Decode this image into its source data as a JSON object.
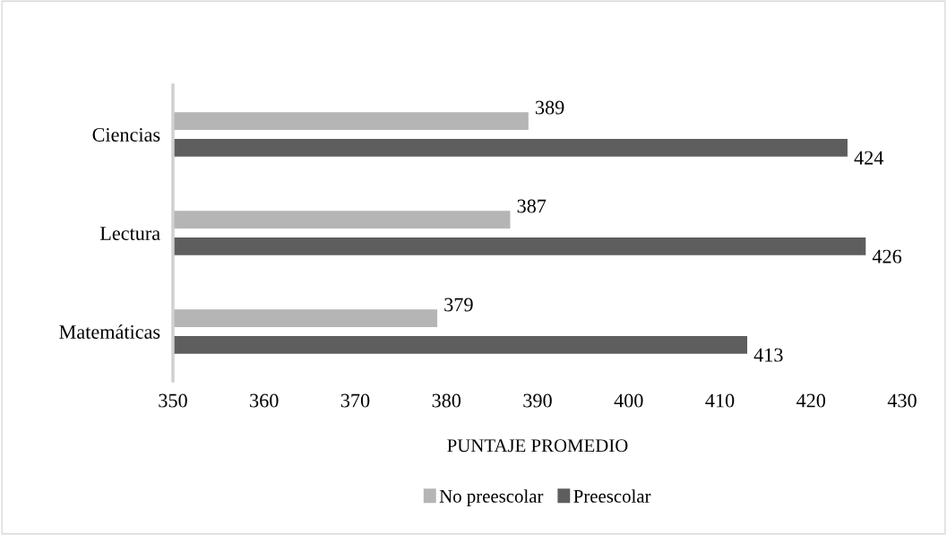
{
  "chart_data": {
    "type": "bar",
    "orientation": "horizontal",
    "xlabel": "PUNTAJE PROMEDIO",
    "categories": [
      "Ciencias",
      "Lectura",
      "Matemáticas"
    ],
    "series": [
      {
        "name": "No preescolar",
        "color": "#b5b5b5",
        "values": [
          389,
          387,
          379
        ]
      },
      {
        "name": "Preescolar",
        "color": "#5e5e5e",
        "values": [
          424,
          426,
          413
        ]
      }
    ],
    "xlim": [
      350,
      430
    ],
    "xticks": [
      350,
      360,
      370,
      380,
      390,
      400,
      410,
      420,
      430
    ],
    "data_labels": true,
    "legend": "bottom",
    "grid": false
  }
}
